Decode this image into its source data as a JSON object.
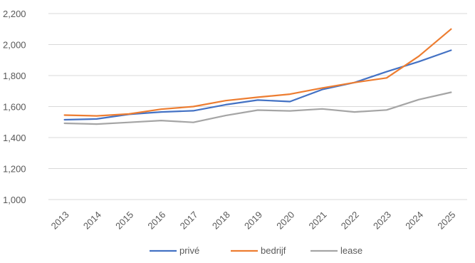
{
  "chart_data": {
    "type": "line",
    "x": [
      "2013",
      "2014",
      "2015",
      "2016",
      "2017",
      "2018",
      "2019",
      "2020",
      "2021",
      "2022",
      "2023",
      "2024",
      "2025"
    ],
    "series": [
      {
        "name": "privé",
        "color": "#4472c4",
        "values": [
          1515,
          1520,
          1550,
          1565,
          1573,
          1612,
          1642,
          1632,
          1710,
          1755,
          1825,
          1890,
          1963
        ]
      },
      {
        "name": "bedrijf",
        "color": "#ed7d31",
        "values": [
          1545,
          1540,
          1552,
          1583,
          1600,
          1638,
          1660,
          1680,
          1720,
          1755,
          1785,
          1925,
          2100
        ]
      },
      {
        "name": "lease",
        "color": "#a5a5a5",
        "values": [
          1492,
          1487,
          1498,
          1510,
          1498,
          1542,
          1577,
          1572,
          1585,
          1565,
          1578,
          1645,
          1692
        ]
      }
    ],
    "y_ticks": [
      "1,000",
      "1,200",
      "1,400",
      "1,600",
      "1,800",
      "2,000",
      "2,200"
    ],
    "ylim": [
      1000,
      2200
    ],
    "grid": true,
    "legend_position": "bottom"
  }
}
